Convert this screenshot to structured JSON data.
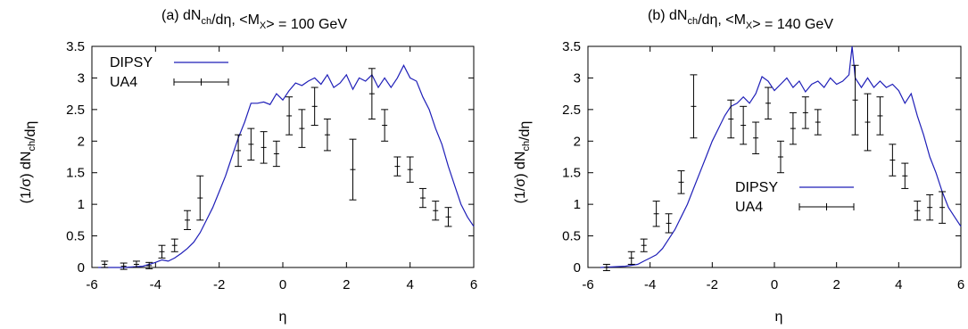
{
  "chart_data": [
    {
      "type": "line",
      "title_parts": {
        "prefix": "(a)  dN",
        "sub1": "ch",
        "mid": "/dη,  <M",
        "sub2": "X",
        "suffix": "> = 100 GeV"
      },
      "xlabel": "η",
      "ylabel": "(1/σ) dN",
      "ylabel_sub": "ch",
      "ylabel_suffix": "/dη",
      "xlim": [
        -6,
        6
      ],
      "ylim": [
        0,
        3.5
      ],
      "xticks": [
        -6,
        -4,
        -2,
        0,
        2,
        4,
        6
      ],
      "yticks": [
        0,
        0.5,
        1,
        1.5,
        2,
        2.5,
        3,
        3.5
      ],
      "legend_position": "top-left",
      "series": [
        {
          "name": "DIPSY",
          "kind": "line",
          "color": "#1f1fb8",
          "x": [
            -5.8,
            -5.0,
            -4.4,
            -4.2,
            -4.0,
            -3.8,
            -3.6,
            -3.4,
            -3.2,
            -3.0,
            -2.8,
            -2.6,
            -2.4,
            -2.2,
            -2.0,
            -1.8,
            -1.6,
            -1.4,
            -1.2,
            -1.0,
            -0.8,
            -0.6,
            -0.4,
            -0.2,
            0.0,
            0.2,
            0.4,
            0.6,
            0.8,
            1.0,
            1.2,
            1.4,
            1.6,
            1.8,
            2.0,
            2.2,
            2.4,
            2.6,
            2.8,
            3.0,
            3.2,
            3.4,
            3.6,
            3.8,
            4.0,
            4.2,
            4.4,
            4.6,
            4.8,
            5.0,
            5.2,
            5.4,
            5.6,
            5.8,
            6.0
          ],
          "y": [
            0.0,
            0.0,
            0.02,
            0.05,
            0.08,
            0.12,
            0.1,
            0.15,
            0.22,
            0.3,
            0.4,
            0.55,
            0.75,
            0.95,
            1.2,
            1.45,
            1.75,
            2.05,
            2.3,
            2.6,
            2.6,
            2.62,
            2.58,
            2.75,
            2.65,
            2.8,
            2.92,
            2.88,
            2.95,
            3.0,
            2.9,
            3.05,
            2.85,
            2.92,
            3.05,
            2.82,
            3.0,
            2.95,
            3.05,
            2.85,
            3.0,
            2.85,
            3.0,
            3.2,
            3.0,
            2.95,
            2.7,
            2.5,
            2.2,
            1.95,
            1.6,
            1.3,
            1.0,
            0.8,
            0.65
          ]
        },
        {
          "name": "UA4",
          "kind": "errorbar",
          "color": "#000000",
          "x": [
            -5.6,
            -5.0,
            -4.6,
            -4.2,
            -3.8,
            -3.4,
            -3.0,
            -2.6,
            -1.4,
            -1.0,
            -0.6,
            -0.2,
            0.2,
            0.6,
            1.0,
            1.4,
            2.2,
            2.8,
            3.2,
            3.6,
            4.0,
            4.4,
            4.8,
            5.2
          ],
          "y": [
            0.05,
            0.02,
            0.05,
            0.03,
            0.25,
            0.35,
            0.75,
            1.1,
            1.85,
            1.95,
            1.9,
            1.8,
            2.4,
            2.2,
            2.55,
            2.1,
            1.55,
            2.75,
            2.25,
            1.6,
            1.55,
            1.1,
            0.9,
            0.8
          ],
          "yerr": [
            0.05,
            0.05,
            0.05,
            0.05,
            0.1,
            0.1,
            0.15,
            0.35,
            0.25,
            0.25,
            0.25,
            0.2,
            0.3,
            0.3,
            0.3,
            0.25,
            0.48,
            0.4,
            0.25,
            0.15,
            0.2,
            0.15,
            0.15,
            0.15
          ]
        }
      ]
    },
    {
      "type": "line",
      "title_parts": {
        "prefix": "(b)  dN",
        "sub1": "ch",
        "mid": "/dη,  <M",
        "sub2": "X",
        "suffix": "> = 140 GeV"
      },
      "xlabel": "η",
      "ylabel": "(1/σ) dN",
      "ylabel_sub": "ch",
      "ylabel_suffix": "/dη",
      "xlim": [
        -6,
        6
      ],
      "ylim": [
        0,
        3.5
      ],
      "xticks": [
        -6,
        -4,
        -2,
        0,
        2,
        4,
        6
      ],
      "yticks": [
        0,
        0.5,
        1,
        1.5,
        2,
        2.5,
        3,
        3.5
      ],
      "legend_position": "bottom-right",
      "series": [
        {
          "name": "DIPSY",
          "kind": "line",
          "color": "#1f1fb8",
          "x": [
            -5.6,
            -4.8,
            -4.4,
            -4.2,
            -4.0,
            -3.8,
            -3.6,
            -3.4,
            -3.2,
            -3.0,
            -2.8,
            -2.6,
            -2.4,
            -2.2,
            -2.0,
            -1.8,
            -1.6,
            -1.4,
            -1.2,
            -1.0,
            -0.8,
            -0.6,
            -0.4,
            -0.2,
            0.0,
            0.2,
            0.4,
            0.6,
            0.8,
            1.0,
            1.2,
            1.4,
            1.6,
            1.8,
            2.0,
            2.2,
            2.4,
            2.5,
            2.6,
            2.8,
            3.0,
            3.2,
            3.4,
            3.6,
            3.8,
            4.0,
            4.2,
            4.4,
            4.6,
            4.8,
            5.0,
            5.2,
            5.4,
            5.6,
            5.8,
            6.0
          ],
          "y": [
            0.0,
            0.02,
            0.05,
            0.1,
            0.15,
            0.2,
            0.3,
            0.45,
            0.6,
            0.8,
            1.0,
            1.25,
            1.5,
            1.75,
            2.0,
            2.2,
            2.4,
            2.55,
            2.6,
            2.7,
            2.6,
            2.75,
            3.02,
            2.95,
            2.8,
            2.9,
            3.0,
            2.85,
            2.95,
            2.78,
            2.9,
            2.95,
            2.85,
            3.0,
            2.9,
            2.95,
            3.05,
            3.5,
            3.0,
            2.85,
            3.0,
            2.85,
            2.95,
            2.85,
            2.9,
            2.8,
            2.6,
            2.75,
            2.4,
            2.1,
            1.75,
            1.5,
            1.2,
            0.95,
            0.8,
            0.65
          ]
        },
        {
          "name": "UA4",
          "kind": "errorbar",
          "color": "#000000",
          "x": [
            -5.4,
            -4.6,
            -4.2,
            -3.8,
            -3.4,
            -3.0,
            -2.6,
            -1.4,
            -1.0,
            -0.6,
            -0.2,
            0.2,
            0.6,
            1.0,
            1.4,
            2.6,
            3.0,
            3.4,
            3.8,
            4.2,
            4.6,
            5.0,
            5.4
          ],
          "y": [
            0.0,
            0.15,
            0.35,
            0.85,
            0.7,
            1.35,
            2.55,
            2.35,
            2.25,
            2.05,
            2.6,
            1.75,
            2.2,
            2.45,
            2.3,
            2.65,
            2.3,
            2.4,
            1.7,
            1.45,
            0.9,
            0.95,
            0.95
          ],
          "yerr": [
            0.05,
            0.1,
            0.1,
            0.2,
            0.15,
            0.18,
            0.5,
            0.3,
            0.3,
            0.25,
            0.25,
            0.25,
            0.25,
            0.25,
            0.2,
            0.55,
            0.45,
            0.3,
            0.25,
            0.2,
            0.15,
            0.2,
            0.25
          ]
        }
      ]
    }
  ]
}
